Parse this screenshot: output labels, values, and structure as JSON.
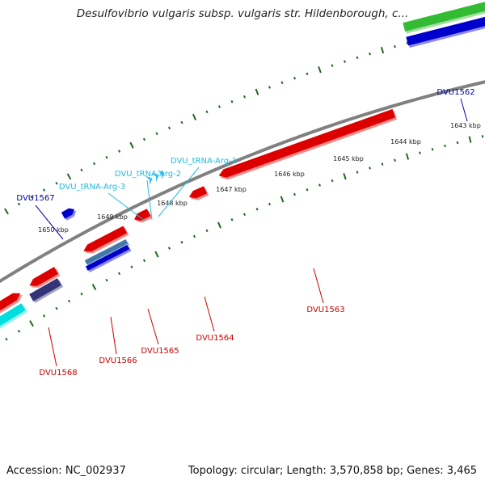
{
  "title": "Desulfovibrio vulgaris subsp. vulgaris str. Hildenborough, c...",
  "footer": {
    "accession": "Accession: NC_002937",
    "topology": "Topology: circular; Length: 3,570,858 bp; Genes: 3,465"
  },
  "colors": {
    "forward_cds": "#dd0000",
    "reverse_cds": "#dd0000",
    "blue_feature": "#0000cc",
    "green_feature": "#33bb33",
    "cyan_feature": "#00dddd",
    "trna": "#33bbee",
    "purple_feature": "#333377",
    "kbp_ticks": "#226622",
    "backbone": "#808080",
    "blue_label": "#0000aa",
    "red_label": "#cc0000",
    "trna_label": "#22bbdd"
  },
  "kbp_labels": [
    {
      "id": "1643",
      "text": "1643 kbp"
    },
    {
      "id": "1644",
      "text": "1644 kbp"
    },
    {
      "id": "1645",
      "text": "1645 kbp"
    },
    {
      "id": "1646",
      "text": "1646 kbp"
    },
    {
      "id": "1647",
      "text": "1647 kbp"
    },
    {
      "id": "1648",
      "text": "1648 kbp"
    },
    {
      "id": "1649",
      "text": "1649 kbp"
    },
    {
      "id": "1650",
      "text": "1650 kbp"
    }
  ],
  "gene_labels": [
    {
      "id": "DVU1562",
      "text": "DVU1562",
      "color_key": "blue_label"
    },
    {
      "id": "DVU1567",
      "text": "DVU1567",
      "color_key": "blue_label"
    },
    {
      "id": "trna1",
      "text": "DVU_tRNA-Arg-1",
      "color_key": "trna_label"
    },
    {
      "id": "trna2",
      "text": "DVU_tRNA-Arg-2",
      "color_key": "trna_label"
    },
    {
      "id": "trna3",
      "text": "DVU_tRNA-Arg-3",
      "color_key": "trna_label"
    },
    {
      "id": "DVU1563",
      "text": "DVU1563",
      "color_key": "red_label"
    },
    {
      "id": "DVU1564",
      "text": "DVU1564",
      "color_key": "red_label"
    },
    {
      "id": "DVU1565",
      "text": "DVU1565",
      "color_key": "red_label"
    },
    {
      "id": "DVU1566",
      "text": "DVU1566",
      "color_key": "red_label"
    },
    {
      "id": "DVU1568",
      "text": "DVU1568",
      "color_key": "red_label"
    }
  ]
}
